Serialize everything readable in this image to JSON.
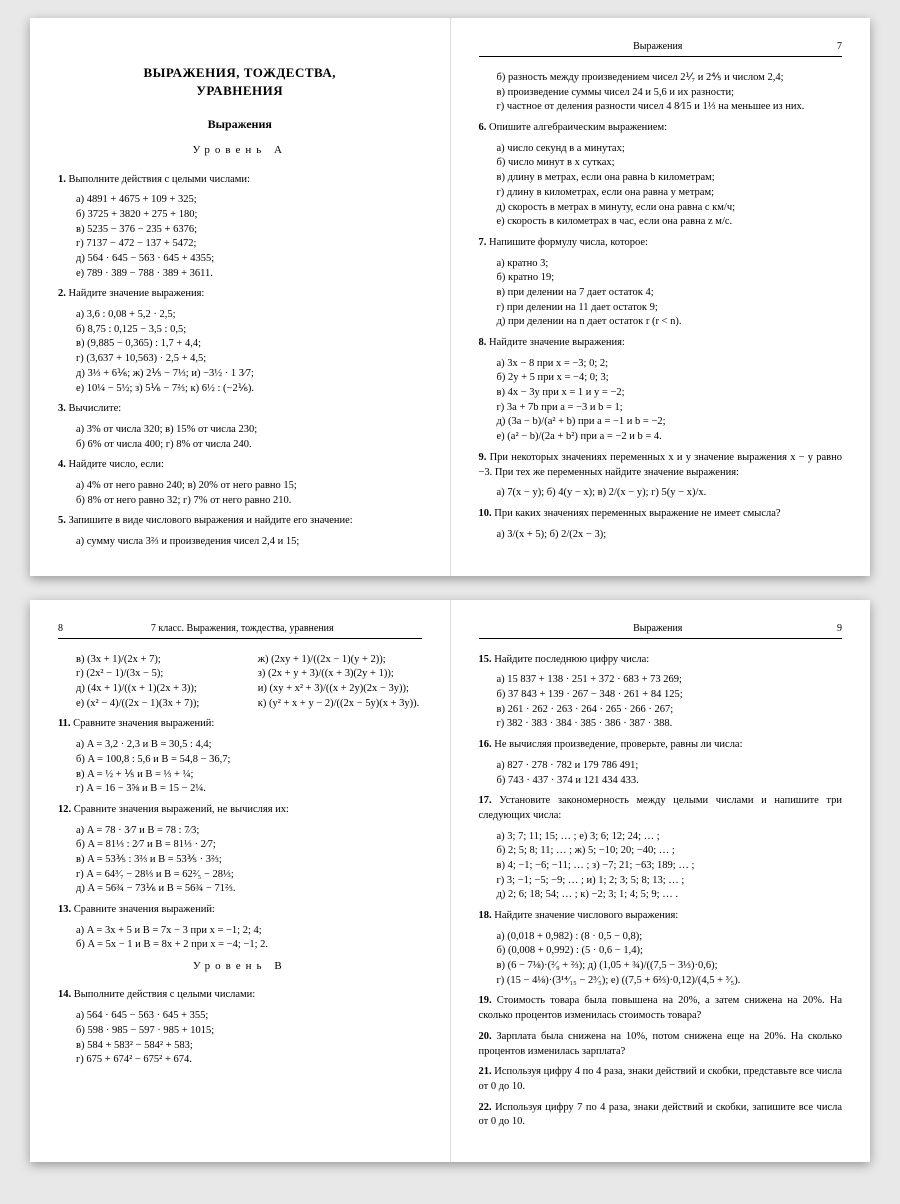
{
  "spread1": {
    "right_header_title": "Выражения",
    "right_header_page": "7",
    "ch_title_1": "ВЫРАЖЕНИЯ, ТОЖДЕСТВА,",
    "ch_title_2": "УРАВНЕНИЯ",
    "sec_title": "Выражения",
    "level_a": "Уровень А",
    "t1": "Выполните действия с целыми числами:",
    "t1a": "а) 4891 + 4675 + 109 + 325;",
    "t1b": "б) 3725 + 3820 + 275 + 180;",
    "t1c": "в) 5235 − 376 − 235 + 6376;",
    "t1d": "г) 7137 − 472 − 137 + 5472;",
    "t1e": "д) 564 · 645 − 563 · 645 + 4355;",
    "t1f": "е) 789 · 389 − 788 · 389 + 3611.",
    "t2": "Найдите значение выражения:",
    "t2a": "а) 3,6 : 0,08 + 5,2 · 2,5;",
    "t2b": "б) 8,75 : 0,125 − 3,5 : 0,5;",
    "t2c": "в) (9,885 − 0,365) : 1,7 + 4,4;",
    "t2d": "г) (3,637 + 10,563) · 2,5 + 4,5;",
    "t2e": "д) 3⅓ + 6⅙;      ж) 2⅕ − 7⅓;      и) −3½ · 1 3⁄7;",
    "t2f": "е) 10¼ − 5½;     з) 5⅙ − 7⅔;      к) 6½ : (−2⅙).",
    "t3": "Вычислите:",
    "t3a": "а) 3% от числа 320;     в) 15% от числа 230;",
    "t3b": "б) 6% от числа 400;     г) 8% от числа 240.",
    "t4": "Найдите число, если:",
    "t4a": "а) 4% от него равно 240;   в) 20% от него равно 15;",
    "t4b": "б) 8% от него равно 32;     г) 7% от него равно 210.",
    "t5": "Запишите в виде числового выражения и найдите его значение:",
    "t5a": "а) сумму числа 3⅔ и произведения чисел 2,4 и 15;",
    "t5b": "б) разность между произведением чисел 2⅟₇ и 2⅘ и числом 2,4;",
    "t5c": "в) произведение суммы чисел 24 и 5,6 и их разности;",
    "t5d": "г) частное от деления разности чисел 4 8⁄15 и 1⅓ на меньшее из них.",
    "t6": "Опишите алгебраическим выражением:",
    "t6a": "а) число секунд в a минутах;",
    "t6b": "б) число минут в x сутках;",
    "t6c": "в) длину в метрах, если она равна b километрам;",
    "t6d": "г) длину в километрах, если она равна y метрам;",
    "t6e": "д) скорость в метрах в минуту, если она равна c км/ч;",
    "t6f": "е) скорость в километрах в час, если она равна z м/с.",
    "t7": "Напишите формулу числа, которое:",
    "t7a": "а) кратно 3;",
    "t7b": "б) кратно 19;",
    "t7c": "в) при делении на 7 дает остаток 4;",
    "t7d": "г) при делении на 11 дает остаток 9;",
    "t7e": "д) при делении на n дает остаток r (r < n).",
    "t8": "Найдите значение выражения:",
    "t8a": "а) 3x − 8 при x = −3; 0; 2;",
    "t8b": "б) 2y + 5 при x = −4; 0; 3;",
    "t8c": "в) 4x − 3y при x = 1 и y = −2;",
    "t8d": "г) 3a + 7b при a = −3 и b = 1;",
    "t8e": "д) (3a − b)/(a² + b) при a = −1 и b = −2;",
    "t8f": "е) (a² − b)/(2a + b²) при a = −2 и b = 4.",
    "t9a": "При некоторых значениях переменных x и y значение выражения x − y равно −3. При тех же переменных найдите значение выражения:",
    "t9b": "а) 7(x − y);    б) 4(y − x);    в) 2/(x − y);    г) 5(y − x)/x.",
    "t10a": "При каких значениях переменных выражение не имеет смысла?",
    "t10b": "а) 3/(x + 5);          б) 2/(2x − 3);"
  },
  "spread2": {
    "left_header_page": "8",
    "left_header_title": "7 класс. Выражения, тождества, уравнения",
    "right_header_title": "Выражения",
    "right_header_page": "9",
    "p8_c1": "в) (3x + 1)/(2x + 7);",
    "p8_c2": "ж) (2xy + 1)/((2x − 1)(y + 2));",
    "p8_c3": "г) (2x² − 1)/(3x − 5);",
    "p8_c4": "з) (2x + y + 3)/((x + 3)(2y + 1));",
    "p8_c5": "д) (4x + 1)/((x + 1)(2x + 3));",
    "p8_c6": "и) (xy + x² + 3)/((x + 2y)(2x − 3y));",
    "p8_c7": "е) (x² − 4)/((2x − 1)(3x + 7));",
    "p8_c8": "к) (y² + x + y − 2)/((2x − 5y)(x + 3y)).",
    "t11": "Сравните значения выражений:",
    "t11a": "а) A = 3,2 · 2,3 и B = 30,5 : 4,4;",
    "t11b": "б) A = 100,8 : 5,6 и B = 54,8 − 36,7;",
    "t11c": "в) A = ½ + ⅕ и B = ⅓ + ¼;",
    "t11d": "г) A = 16 − 3⅝ и B = 15 − 2¼.",
    "t12": "Сравните значения выражений, не вычисляя их:",
    "t12a": "а) A = 78 · 3⁄7 и B = 78 : 7⁄3;",
    "t12b": "б) A = 81⅓ : 2⁄7 и B = 81⅓ · 2⁄7;",
    "t12c": "в) A = 53⅗ : 3⅔ и B = 53⅗ · 3⅔;",
    "t12d": "г) A = 64³⁄₇ − 28⅓ и B = 62²⁄₅ − 28⅓;",
    "t12e": "д) A = 56¾ − 73⅙ и B = 56¾ − 71⅔.",
    "t13": "Сравните значения выражений:",
    "t13a": "а) A = 3x + 5 и B = 7x − 3 при x = −1; 2; 4;",
    "t13b": "б) A = 5x − 1 и B = 8x + 2 при x = −4; −1; 2.",
    "level_b": "Уровень В",
    "t14": "Выполните действия с целыми числами:",
    "t14a": "а) 564 · 645 − 563 · 645 + 355;",
    "t14b": "б) 598 · 985 − 597 · 985 + 1015;",
    "t14c": "в) 584 + 583² − 584² + 583;",
    "t14d": "г) 675 + 674² − 675² + 674.",
    "t15": "Найдите последнюю цифру числа:",
    "t15a": "а) 15 837 + 138 · 251 + 372 · 683 + 73 269;",
    "t15b": "б) 37 843 + 139 · 267 − 348 · 261 + 84 125;",
    "t15c": "в) 261 · 262 · 263 · 264 · 265 · 266 · 267;",
    "t15d": "г) 382 · 383 · 384 · 385 · 386 · 387 · 388.",
    "t16": "Не вычисляя произведение, проверьте, равны ли числа:",
    "t16a": "а) 827 · 278 · 782 и 179 786 491;",
    "t16b": "б) 743 · 437 · 374 и 121 434 433.",
    "t17": "Установите закономерность между целыми числами и напишите три следующих числа:",
    "t17a": "а) 3; 7; 11; 15; … ;        е) 3; 6; 12; 24; … ;",
    "t17b": "б) 2; 5; 8; 11; … ;         ж) 5; −10; 20; −40; … ;",
    "t17c": "в) 4; −1; −6; −11; … ;    з) −7; 21; −63; 189; … ;",
    "t17d": "г) 3; −1; −5; −9; … ;      и) 1; 2; 3; 5; 8; 13; … ;",
    "t17e": "д) 2; 6; 18; 54; … ;        к) −2; 3; 1; 4; 5; 9; … .",
    "t18": "Найдите значение числового выражения:",
    "t18a": "а) (0,018 + 0,982) : (8 · 0,5 − 0,8);",
    "t18b": "б) (0,008 + 0,992) : (5 · 0,6 − 1,4);",
    "t18c": "в) (6 − 7⅛)·(²⁄₉ + ⅔);     д) (1,05 + ¾)/((7,5 − 3⅓)·0,6);",
    "t18d": "г) (15 − 4⅛)·(3¹⁴⁄₁₅ − 2³⁄₅);   е) ((7,5 + 6⅔)·0,12)/(4,5 + ³⁄₅).",
    "t19": "Стоимость товара была повышена на 20%, а затем снижена на 20%. На сколько процентов изменилась стоимость товара?",
    "t20": "Зарплата была снижена на 10%, потом снижена еще на 20%. На сколько процентов изменилась зарплата?",
    "t21": "Используя цифру 4 по 4 раза, знаки действий и скобки, представьте все числа от 0 до 10.",
    "t22": "Используя цифру 7 по 4 раза, знаки действий и скобки, запишите все числа от 0 до 10."
  }
}
